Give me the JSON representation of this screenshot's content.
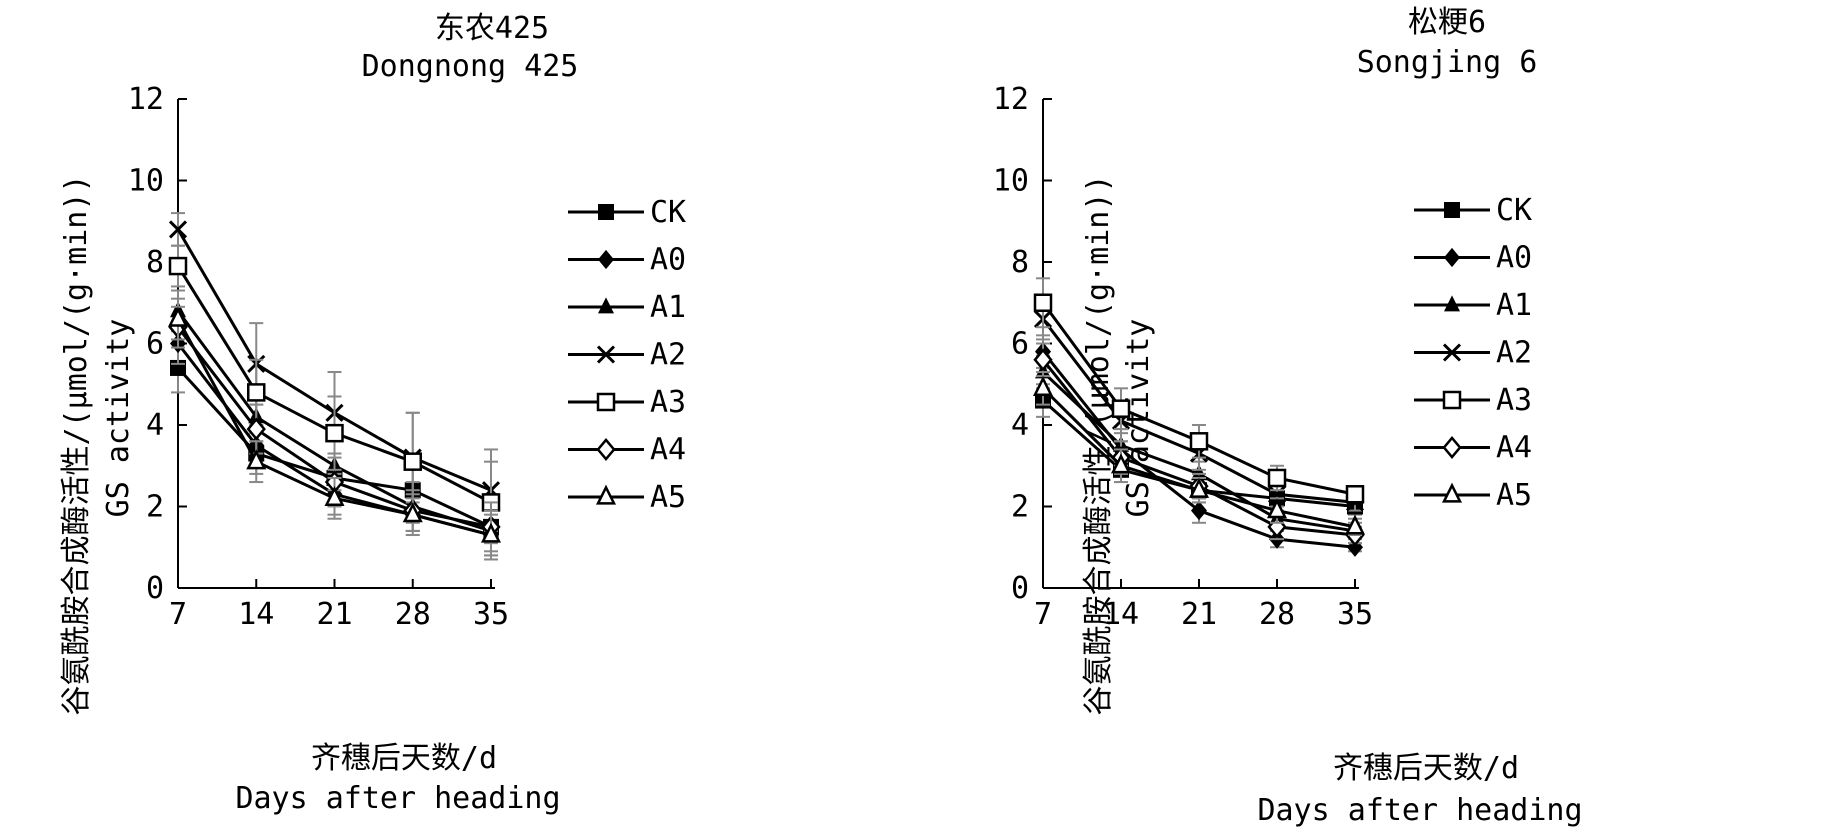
{
  "colors": {
    "line": "#000000",
    "errorbar": "#888888",
    "background": "#ffffff"
  },
  "legend_entries": [
    {
      "name": "CK",
      "marker": "square-filled"
    },
    {
      "name": "A0",
      "marker": "diamond-filled"
    },
    {
      "name": "A1",
      "marker": "triangle-filled"
    },
    {
      "name": "A2",
      "marker": "cross"
    },
    {
      "name": "A3",
      "marker": "square-open"
    },
    {
      "name": "A4",
      "marker": "diamond-open"
    },
    {
      "name": "A5",
      "marker": "triangle-open"
    }
  ],
  "chart_data": [
    {
      "type": "line",
      "title_cn": "东农425",
      "title_en": "Dongnong 425",
      "xlabel_cn": "齐穗后天数/d",
      "xlabel_en": "Days after heading",
      "ylabel_cn": "谷氨酰胺合成酶活性/(μmol/(g·min))",
      "ylabel_en": "GS activity",
      "x": [
        7,
        14,
        21,
        28,
        35
      ],
      "xticks": [
        "7",
        "14",
        "21",
        "28",
        "35"
      ],
      "yticks": [
        "0",
        "2",
        "4",
        "6",
        "8",
        "10",
        "12"
      ],
      "ylim": [
        0,
        12
      ],
      "grid": false,
      "legend": "right",
      "series": [
        {
          "name": "CK",
          "values": [
            5.4,
            3.3,
            2.7,
            2.4,
            1.5
          ],
          "err": [
            0.6,
            0.5,
            0.6,
            0.8,
            0.8
          ]
        },
        {
          "name": "A0",
          "values": [
            6.0,
            3.5,
            2.3,
            1.8,
            1.3
          ],
          "err": [
            0.5,
            0.5,
            0.5,
            0.4,
            0.5
          ]
        },
        {
          "name": "A1",
          "values": [
            6.8,
            4.2,
            3.0,
            2.0,
            1.4
          ],
          "err": [
            0.5,
            0.6,
            0.6,
            0.6,
            0.6
          ]
        },
        {
          "name": "A2",
          "values": [
            8.8,
            5.5,
            4.3,
            3.2,
            2.4
          ],
          "err": [
            0.4,
            1.0,
            1.0,
            1.1,
            1.0
          ]
        },
        {
          "name": "A3",
          "values": [
            7.9,
            4.8,
            3.8,
            3.1,
            2.1
          ],
          "err": [
            0.5,
            0.8,
            0.9,
            1.2,
            1.0
          ]
        },
        {
          "name": "A4",
          "values": [
            6.4,
            3.9,
            2.6,
            1.9,
            1.5
          ],
          "err": [
            0.5,
            0.6,
            0.6,
            0.5,
            0.6
          ]
        },
        {
          "name": "A5",
          "values": [
            6.6,
            3.1,
            2.2,
            1.8,
            1.3
          ],
          "err": [
            0.5,
            0.5,
            0.5,
            0.5,
            0.6
          ]
        }
      ]
    },
    {
      "type": "line",
      "title_cn": "松粳6",
      "title_en": "Songjing 6",
      "xlabel_cn": "齐穗后天数/d",
      "xlabel_en": "Days after heading",
      "ylabel_cn": "谷氨酰胺合成酶活性/(μmol/(g·min))",
      "ylabel_en": "GS activity",
      "x": [
        7,
        14,
        21,
        28,
        35
      ],
      "xticks": [
        "7",
        "14",
        "21",
        "28",
        "35"
      ],
      "yticks": [
        "0",
        "2",
        "4",
        "6",
        "8",
        "10",
        "12"
      ],
      "ylim": [
        0,
        12
      ],
      "grid": false,
      "legend": "right",
      "series": [
        {
          "name": "CK",
          "values": [
            4.6,
            2.9,
            2.4,
            2.2,
            2.0
          ],
          "err": [
            0.4,
            0.3,
            0.3,
            0.3,
            0.2
          ]
        },
        {
          "name": "A0",
          "values": [
            5.8,
            3.4,
            1.9,
            1.2,
            1.0
          ],
          "err": [
            0.4,
            0.4,
            0.3,
            0.2,
            0.1
          ]
        },
        {
          "name": "A1",
          "values": [
            5.3,
            3.5,
            2.8,
            1.7,
            1.4
          ],
          "err": [
            0.4,
            0.4,
            0.3,
            0.3,
            0.2
          ]
        },
        {
          "name": "A2",
          "values": [
            6.6,
            4.1,
            3.3,
            2.3,
            2.1
          ],
          "err": [
            0.5,
            0.5,
            0.4,
            0.3,
            0.2
          ]
        },
        {
          "name": "A3",
          "values": [
            7.0,
            4.4,
            3.6,
            2.7,
            2.3
          ],
          "err": [
            0.6,
            0.5,
            0.4,
            0.3,
            0.2
          ]
        },
        {
          "name": "A4",
          "values": [
            5.6,
            3.2,
            2.5,
            1.5,
            1.3
          ],
          "err": [
            0.4,
            0.4,
            0.3,
            0.3,
            0.2
          ]
        },
        {
          "name": "A5",
          "values": [
            4.9,
            3.0,
            2.4,
            1.9,
            1.5
          ],
          "err": [
            0.4,
            0.4,
            0.3,
            0.3,
            0.2
          ]
        }
      ]
    }
  ]
}
